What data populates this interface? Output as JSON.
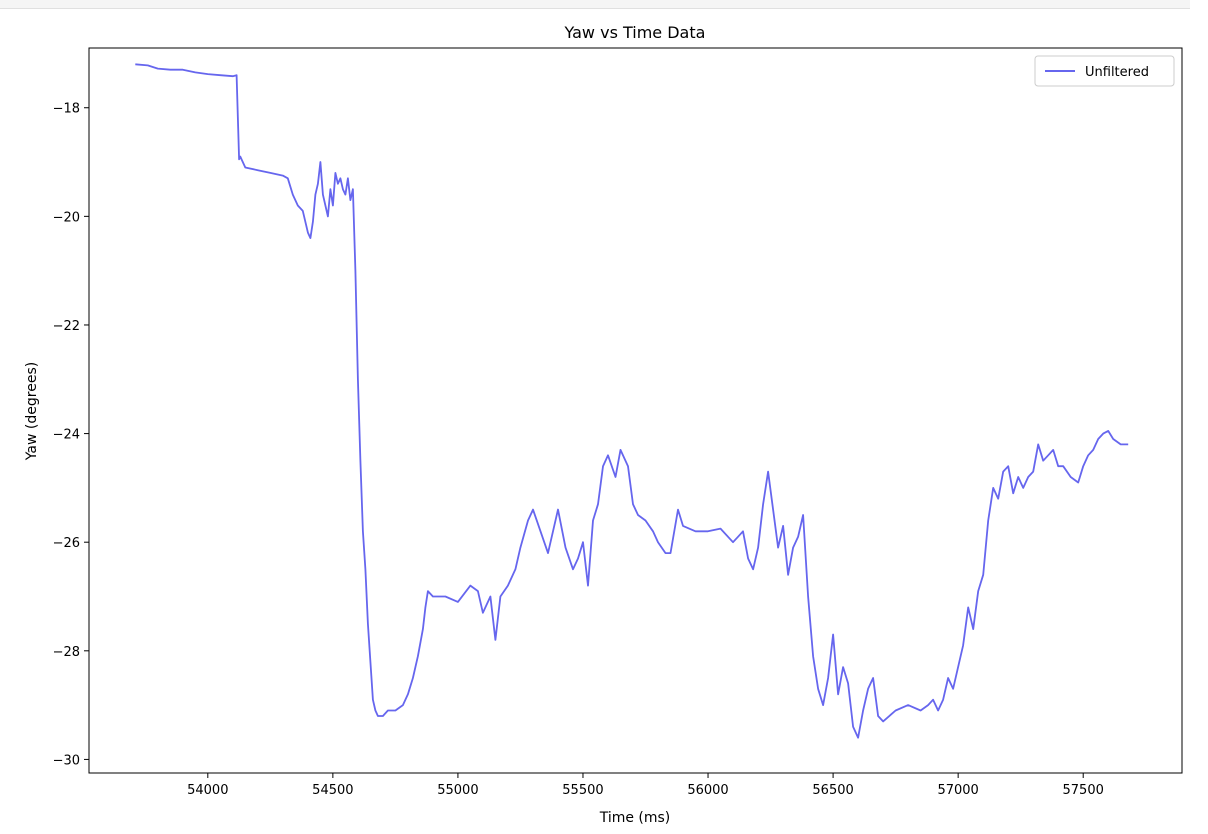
{
  "chart_data": {
    "type": "line",
    "title": "Yaw vs Time Data",
    "xlabel": "Time (ms)",
    "ylabel": "Yaw (degrees)",
    "xlim": [
      53525,
      57895
    ],
    "ylim": [
      -30.25,
      -16.9
    ],
    "xticks": [
      54000,
      54500,
      55000,
      55500,
      56000,
      56500,
      57000,
      57500
    ],
    "yticks": [
      -18,
      -20,
      -22,
      -24,
      -26,
      -28,
      -30
    ],
    "grid": false,
    "legend": {
      "position": "top-right",
      "entries": [
        "Unfiltered"
      ]
    },
    "series": [
      {
        "name": "Unfiltered",
        "color": "#6666ee",
        "x": [
          53710,
          53760,
          53800,
          53850,
          53900,
          53950,
          54000,
          54050,
          54100,
          54115,
          54125,
          54130,
          54150,
          54200,
          54250,
          54300,
          54320,
          54340,
          54360,
          54380,
          54400,
          54410,
          54420,
          54430,
          54440,
          54450,
          54460,
          54470,
          54480,
          54490,
          54500,
          54510,
          54520,
          54530,
          54540,
          54550,
          54560,
          54570,
          54580,
          54590,
          54600,
          54610,
          54620,
          54630,
          54640,
          54650,
          54660,
          54670,
          54680,
          54700,
          54720,
          54750,
          54780,
          54800,
          54820,
          54840,
          54860,
          54870,
          54880,
          54900,
          54950,
          55000,
          55050,
          55080,
          55100,
          55130,
          55150,
          55170,
          55200,
          55230,
          55250,
          55280,
          55300,
          55330,
          55360,
          55400,
          55430,
          55460,
          55480,
          55500,
          55520,
          55540,
          55560,
          55580,
          55600,
          55630,
          55650,
          55680,
          55700,
          55720,
          55750,
          55780,
          55800,
          55830,
          55850,
          55880,
          55900,
          55950,
          56000,
          56050,
          56100,
          56120,
          56140,
          56160,
          56180,
          56200,
          56220,
          56240,
          56260,
          56280,
          56300,
          56320,
          56340,
          56360,
          56380,
          56400,
          56420,
          56440,
          56460,
          56480,
          56500,
          56520,
          56540,
          56560,
          56580,
          56600,
          56620,
          56640,
          56660,
          56680,
          56700,
          56750,
          56800,
          56850,
          56880,
          56900,
          56920,
          56940,
          56960,
          56980,
          57000,
          57020,
          57040,
          57060,
          57080,
          57100,
          57120,
          57140,
          57160,
          57180,
          57200,
          57220,
          57240,
          57260,
          57280,
          57300,
          57320,
          57340,
          57360,
          57380,
          57400,
          57420,
          57450,
          57480,
          57500,
          57520,
          57540,
          57560,
          57580,
          57600,
          57620,
          57650,
          57680
        ],
        "y": [
          -17.2,
          -17.22,
          -17.28,
          -17.3,
          -17.3,
          -17.35,
          -17.38,
          -17.4,
          -17.42,
          -17.4,
          -18.95,
          -18.9,
          -19.1,
          -19.15,
          -19.2,
          -19.25,
          -19.3,
          -19.6,
          -19.8,
          -19.9,
          -20.3,
          -20.4,
          -20.1,
          -19.6,
          -19.4,
          -19.0,
          -19.6,
          -19.8,
          -20.0,
          -19.5,
          -19.8,
          -19.2,
          -19.4,
          -19.3,
          -19.5,
          -19.6,
          -19.3,
          -19.7,
          -19.5,
          -21.0,
          -23.0,
          -24.5,
          -25.8,
          -26.5,
          -27.5,
          -28.2,
          -28.9,
          -29.1,
          -29.2,
          -29.2,
          -29.1,
          -29.1,
          -29.0,
          -28.8,
          -28.5,
          -28.1,
          -27.6,
          -27.2,
          -26.9,
          -27.0,
          -27.0,
          -27.1,
          -26.8,
          -26.9,
          -27.3,
          -27.0,
          -27.8,
          -27.0,
          -26.8,
          -26.5,
          -26.1,
          -25.6,
          -25.4,
          -25.8,
          -26.2,
          -25.4,
          -26.1,
          -26.5,
          -26.3,
          -26.0,
          -26.8,
          -25.6,
          -25.3,
          -24.6,
          -24.4,
          -24.8,
          -24.3,
          -24.6,
          -25.3,
          -25.5,
          -25.6,
          -25.8,
          -26.0,
          -26.2,
          -26.2,
          -25.4,
          -25.7,
          -25.8,
          -25.8,
          -25.75,
          -26.0,
          -25.9,
          -25.8,
          -26.3,
          -26.5,
          -26.1,
          -25.3,
          -24.7,
          -25.4,
          -26.1,
          -25.7,
          -26.6,
          -26.1,
          -25.9,
          -25.5,
          -27.0,
          -28.1,
          -28.7,
          -29.0,
          -28.5,
          -27.7,
          -28.8,
          -28.3,
          -28.6,
          -29.4,
          -29.6,
          -29.1,
          -28.7,
          -28.5,
          -29.2,
          -29.3,
          -29.1,
          -29.0,
          -29.1,
          -29.0,
          -28.9,
          -29.1,
          -28.9,
          -28.5,
          -28.7,
          -28.3,
          -27.9,
          -27.2,
          -27.6,
          -26.9,
          -26.6,
          -25.6,
          -25.0,
          -25.2,
          -24.7,
          -24.6,
          -25.1,
          -24.8,
          -25.0,
          -24.8,
          -24.7,
          -24.2,
          -24.5,
          -24.4,
          -24.3,
          -24.6,
          -24.6,
          -24.8,
          -24.9,
          -24.6,
          -24.4,
          -24.3,
          -24.1,
          -24.0,
          -23.95,
          -24.1,
          -24.2,
          -24.2
        ]
      }
    ]
  }
}
